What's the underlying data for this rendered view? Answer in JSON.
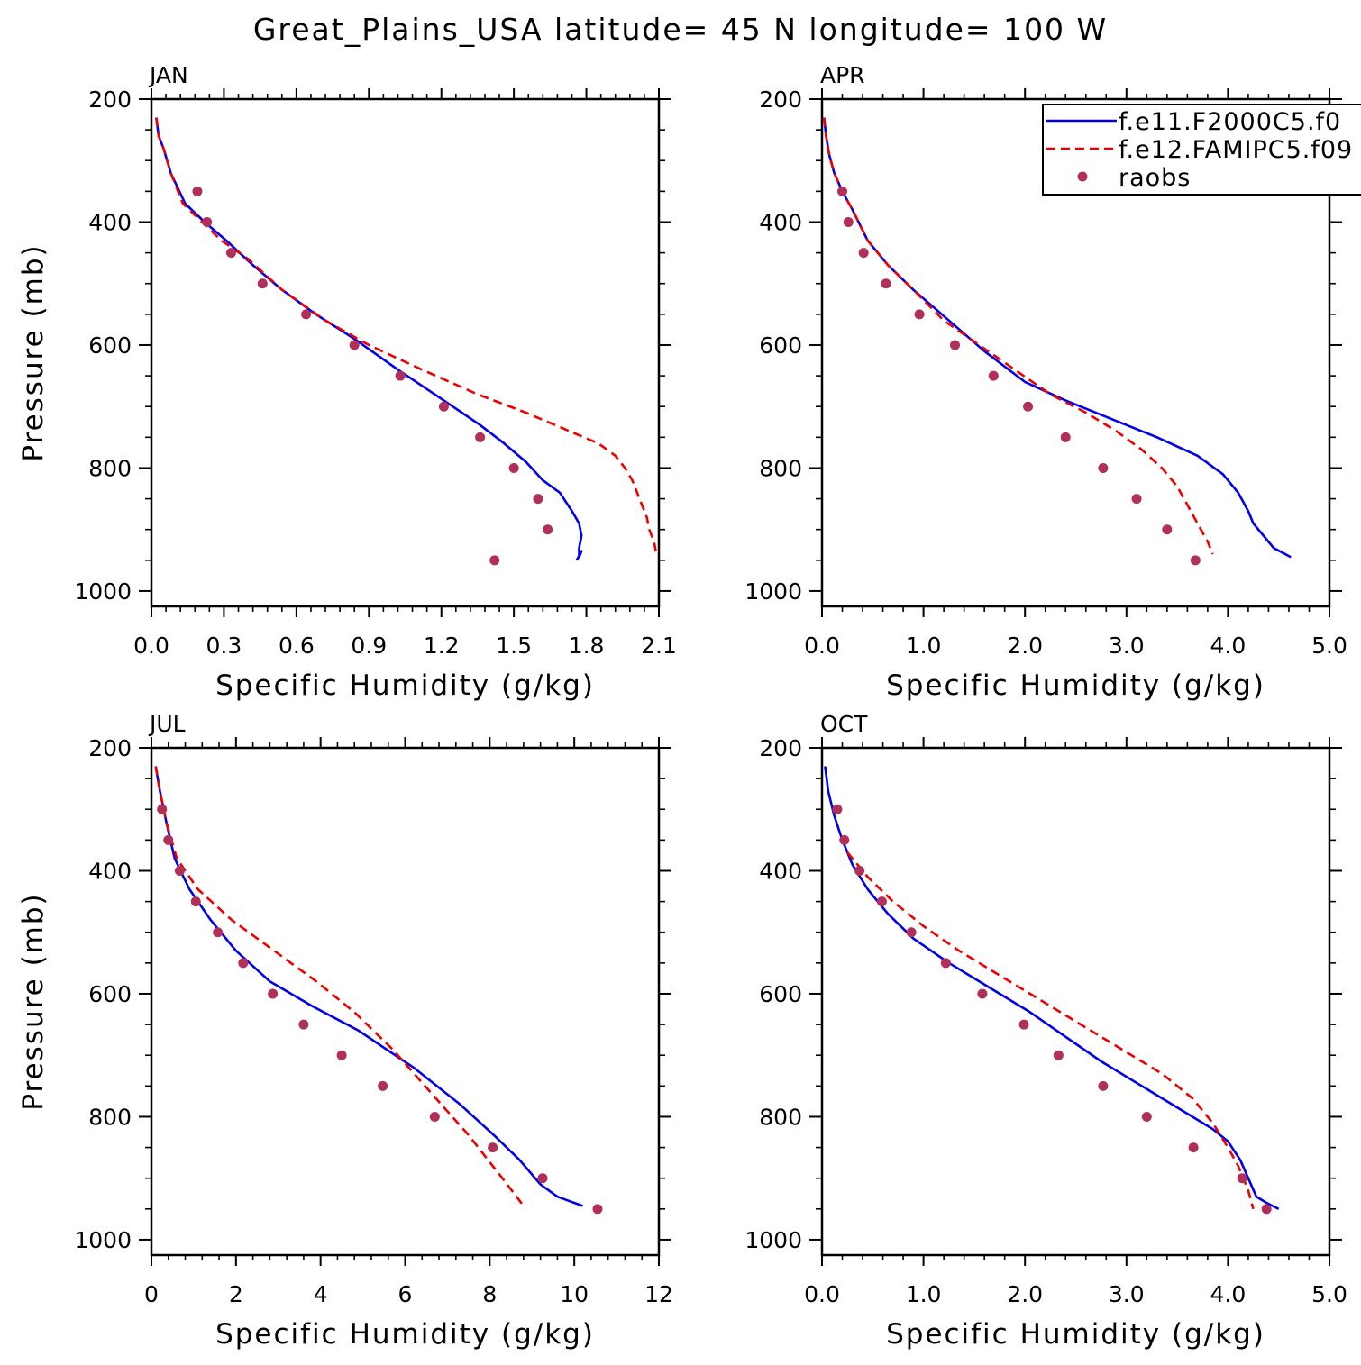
{
  "title": "Great_Plains_USA  latitude= 45 N longitude= 100 W",
  "colors": {
    "model1": "#0000ee",
    "model2": "#ee0000",
    "raobs": "#b0305a"
  },
  "legend": {
    "entries": [
      {
        "label": "f.e11.F2000C5.f0",
        "style": "solid",
        "color_key": "model1"
      },
      {
        "label": "f.e12.FAMIPC5.f09",
        "style": "dashed",
        "color_key": "model2"
      },
      {
        "label": "raobs",
        "style": "marker",
        "color_key": "raobs"
      }
    ]
  },
  "chart_data": [
    {
      "type": "line",
      "title": "JAN",
      "xlabel": "Specific Humidity (g/kg)",
      "ylabel": "Pressure (mb)",
      "xlim": [
        0,
        2.1
      ],
      "ylim": [
        1025,
        200
      ],
      "xticks": [
        "0.0",
        "0.3",
        "0.6",
        "0.9",
        "1.2",
        "1.5",
        "1.8",
        "2.1"
      ],
      "yticks": [
        "200",
        "400",
        "600",
        "800",
        "1000"
      ],
      "series": [
        {
          "name": "f.e11.F2000C5.f0",
          "x": [
            0.02,
            0.03,
            0.05,
            0.08,
            0.14,
            0.22,
            0.31,
            0.42,
            0.54,
            0.68,
            0.84,
            1.02,
            1.21,
            1.36,
            1.46,
            1.55,
            1.62,
            1.69,
            1.74,
            1.77,
            1.78,
            1.77,
            1.77,
            1.78,
            1.76
          ],
          "y": [
            230,
            260,
            280,
            320,
            370,
            400,
            430,
            470,
            510,
            550,
            590,
            640,
            690,
            730,
            760,
            790,
            820,
            840,
            870,
            890,
            910,
            930,
            945,
            935,
            950
          ]
        },
        {
          "name": "f.e12.FAMIPC5.f09",
          "x": [
            0.02,
            0.03,
            0.05,
            0.08,
            0.13,
            0.21,
            0.29,
            0.4,
            0.54,
            0.72,
            0.9,
            1.12,
            1.35,
            1.55,
            1.73,
            1.85,
            1.92,
            1.96,
            1.99,
            2.01,
            2.03,
            2.05,
            2.06,
            2.08,
            2.09
          ],
          "y": [
            230,
            260,
            280,
            320,
            370,
            400,
            430,
            460,
            510,
            560,
            600,
            640,
            680,
            710,
            740,
            760,
            780,
            800,
            820,
            840,
            860,
            880,
            900,
            920,
            940
          ]
        },
        {
          "name": "raobs",
          "x": [
            0.19,
            0.23,
            0.33,
            0.46,
            0.64,
            0.84,
            1.03,
            1.21,
            1.36,
            1.5,
            1.6,
            1.64,
            1.42
          ],
          "y": [
            350,
            400,
            450,
            500,
            550,
            600,
            650,
            700,
            750,
            800,
            850,
            900,
            950
          ]
        }
      ]
    },
    {
      "type": "line",
      "title": "APR",
      "xlabel": "Specific Humidity (g/kg)",
      "ylabel": "",
      "xlim": [
        0,
        5.0
      ],
      "ylim": [
        1025,
        200
      ],
      "xticks": [
        "0.0",
        "1.0",
        "2.0",
        "3.0",
        "4.0",
        "5.0"
      ],
      "yticks": [
        "200",
        "400",
        "600",
        "800",
        "1000"
      ],
      "series": [
        {
          "name": "f.e11.F2000C5.f0",
          "x": [
            0.02,
            0.04,
            0.07,
            0.12,
            0.2,
            0.3,
            0.45,
            0.65,
            0.9,
            1.25,
            1.6,
            2.0,
            2.4,
            2.85,
            3.3,
            3.7,
            3.95,
            4.1,
            4.2,
            4.25,
            4.35,
            4.45,
            4.62
          ],
          "y": [
            230,
            260,
            290,
            320,
            350,
            380,
            430,
            470,
            510,
            560,
            610,
            660,
            690,
            720,
            750,
            780,
            810,
            840,
            870,
            890,
            910,
            930,
            945
          ]
        },
        {
          "name": "f.e12.FAMIPC5.f09",
          "x": [
            0.02,
            0.04,
            0.07,
            0.12,
            0.2,
            0.3,
            0.45,
            0.65,
            0.9,
            1.2,
            1.55,
            1.9,
            2.25,
            2.6,
            2.9,
            3.15,
            3.35,
            3.5,
            3.6,
            3.7,
            3.8,
            3.85
          ],
          "y": [
            230,
            260,
            290,
            320,
            350,
            380,
            430,
            470,
            510,
            560,
            600,
            640,
            680,
            710,
            740,
            770,
            800,
            830,
            860,
            890,
            920,
            940
          ]
        },
        {
          "name": "raobs",
          "x": [
            0.2,
            0.26,
            0.41,
            0.63,
            0.96,
            1.31,
            1.69,
            2.03,
            2.4,
            2.77,
            3.1,
            3.4,
            3.68
          ],
          "y": [
            350,
            400,
            450,
            500,
            550,
            600,
            650,
            700,
            750,
            800,
            850,
            900,
            950
          ]
        }
      ]
    },
    {
      "type": "line",
      "title": "JUL",
      "xlabel": "Specific Humidity (g/kg)",
      "ylabel": "Pressure (mb)",
      "xlim": [
        0,
        12
      ],
      "ylim": [
        1025,
        200
      ],
      "xticks": [
        "0",
        "2",
        "4",
        "6",
        "8",
        "10",
        "12"
      ],
      "yticks": [
        "200",
        "400",
        "600",
        "800",
        "1000"
      ],
      "series": [
        {
          "name": "f.e11.F2000C5.f0",
          "x": [
            0.1,
            0.2,
            0.35,
            0.55,
            0.9,
            1.4,
            2.0,
            2.8,
            3.8,
            4.9,
            6.2,
            7.3,
            8.1,
            8.7,
            9.2,
            9.6,
            10.2
          ],
          "y": [
            230,
            270,
            320,
            380,
            430,
            480,
            530,
            580,
            620,
            660,
            720,
            780,
            830,
            870,
            910,
            930,
            945
          ]
        },
        {
          "name": "f.e12.FAMIPC5.f09",
          "x": [
            0.1,
            0.2,
            0.35,
            0.6,
            1.1,
            1.9,
            2.9,
            3.9,
            4.8,
            5.7,
            6.6,
            7.5,
            8.3,
            8.8
          ],
          "y": [
            230,
            270,
            320,
            380,
            430,
            480,
            530,
            580,
            630,
            690,
            760,
            830,
            900,
            945
          ]
        },
        {
          "name": "raobs",
          "x": [
            0.25,
            0.4,
            0.67,
            1.05,
            1.57,
            2.17,
            2.87,
            3.6,
            4.5,
            5.47,
            6.7,
            8.07,
            9.25,
            10.55
          ],
          "y": [
            300,
            350,
            400,
            450,
            500,
            550,
            600,
            650,
            700,
            750,
            800,
            850,
            900,
            950
          ]
        }
      ]
    },
    {
      "type": "line",
      "title": "OCT",
      "xlabel": "Specific Humidity (g/kg)",
      "ylabel": "",
      "xlim": [
        0,
        5.0
      ],
      "ylim": [
        1025,
        200
      ],
      "xticks": [
        "0.0",
        "1.0",
        "2.0",
        "3.0",
        "4.0",
        "5.0"
      ],
      "yticks": [
        "200",
        "400",
        "600",
        "800",
        "1000"
      ],
      "series": [
        {
          "name": "f.e11.F2000C5.f0",
          "x": [
            0.03,
            0.06,
            0.12,
            0.2,
            0.3,
            0.45,
            0.65,
            0.9,
            1.25,
            1.65,
            2.05,
            2.4,
            2.75,
            3.15,
            3.55,
            3.85,
            4.0,
            4.12,
            4.2,
            4.28,
            4.38,
            4.5
          ],
          "y": [
            230,
            270,
            310,
            350,
            390,
            430,
            470,
            510,
            550,
            590,
            630,
            670,
            710,
            750,
            790,
            820,
            840,
            870,
            900,
            930,
            940,
            950
          ]
        },
        {
          "name": "f.e12.FAMIPC5.f09",
          "x": [
            0.25,
            0.45,
            0.7,
            1.0,
            1.35,
            1.75,
            2.15,
            2.55,
            2.95,
            3.35,
            3.65,
            3.85,
            4.0,
            4.1,
            4.2,
            4.25
          ],
          "y": [
            370,
            410,
            450,
            490,
            530,
            570,
            610,
            650,
            690,
            730,
            770,
            810,
            850,
            880,
            920,
            950
          ]
        },
        {
          "name": "raobs",
          "x": [
            0.15,
            0.22,
            0.37,
            0.59,
            0.88,
            1.22,
            1.58,
            1.99,
            2.33,
            2.77,
            3.2,
            3.66,
            4.14,
            4.38
          ],
          "y": [
            300,
            350,
            400,
            450,
            500,
            550,
            600,
            650,
            700,
            750,
            800,
            850,
            900,
            950
          ]
        }
      ]
    }
  ]
}
